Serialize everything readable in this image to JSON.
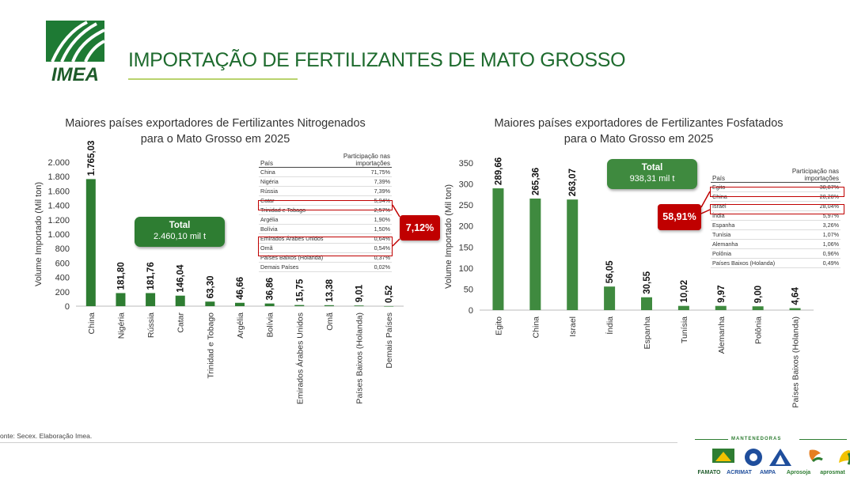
{
  "header": {
    "logo_text": "IMEA",
    "title": "IMPORTAÇÃO DE FERTILIZANTES DE MATO GROSSO"
  },
  "chart_data": [
    {
      "type": "bar",
      "title": "Maiores países exportadores de Fertilizantes Nitrogenados",
      "subtitle": "para o Mato Grosso em 2025",
      "ylabel": "Volume Importado (Mil ton)",
      "xlabel": "",
      "ylim": [
        0,
        2000
      ],
      "yticks": [
        0,
        200,
        400,
        600,
        800,
        1000,
        1200,
        1400,
        1600,
        1800,
        2000
      ],
      "ytick_labels": [
        "0",
        "200",
        "400",
        "600",
        "800",
        "1.000",
        "1.200",
        "1.400",
        "1.600",
        "1.800",
        "2.000"
      ],
      "categories": [
        "China",
        "Nigéria",
        "Rússia",
        "Catar",
        "Trinidad e Tobago",
        "Argélia",
        "Bolívia",
        "Emirados Árabes Unidos",
        "Omã",
        "Países Baixos (Holanda)",
        "Demais Países"
      ],
      "values": [
        1765.03,
        181.8,
        181.76,
        146.04,
        63.3,
        46.66,
        36.86,
        15.75,
        13.38,
        9.01,
        0.52
      ],
      "value_labels": [
        "1.765,03",
        "181,80",
        "181,76",
        "146,04",
        "63,30",
        "46,66",
        "36,86",
        "15,75",
        "13,38",
        "9,01",
        "0,52"
      ],
      "bar_color": "#2e7d32",
      "grid": false,
      "legend": "none"
    },
    {
      "type": "bar",
      "title": "Maiores países exportadores de Fertilizantes Fosfatados",
      "subtitle": "para o Mato Grosso em 2025",
      "ylabel": "Volume Importado (Mil ton)",
      "xlabel": "",
      "ylim": [
        0,
        350
      ],
      "yticks": [
        0,
        50,
        100,
        150,
        200,
        250,
        300,
        350
      ],
      "ytick_labels": [
        "0",
        "50",
        "100",
        "150",
        "200",
        "250",
        "300",
        "350"
      ],
      "categories": [
        "Egito",
        "China",
        "Israel",
        "Índia",
        "Espanha",
        "Tunísia",
        "Alemanha",
        "Polônia",
        "Países Baixos (Holanda)"
      ],
      "values": [
        289.66,
        265.36,
        263.07,
        56.05,
        30.55,
        10.02,
        9.97,
        9.0,
        4.64
      ],
      "value_labels": [
        "289,66",
        "265,36",
        "263,07",
        "56,05",
        "30,55",
        "10,02",
        "9,97",
        "9,00",
        "4,64"
      ],
      "bar_color": "#3f8a3f",
      "grid": false,
      "legend": "none"
    }
  ],
  "chart1": {
    "total": {
      "label": "Total",
      "value": "2.460,10 mil t"
    },
    "table": {
      "col_country": "País",
      "col_share": "Participação nas importações",
      "rows": [
        {
          "country": "China",
          "share": "71,75%"
        },
        {
          "country": "Nigéria",
          "share": "7,39%"
        },
        {
          "country": "Rússia",
          "share": "7,39%"
        },
        {
          "country": "Catar",
          "share": "5,94%"
        },
        {
          "country": "Trinidad e Tobago",
          "share": "2,57%"
        },
        {
          "country": "Argélia",
          "share": "1,90%"
        },
        {
          "country": "Bolívia",
          "share": "1,50%"
        },
        {
          "country": "Emirados Árabes Unidos",
          "share": "0,64%"
        },
        {
          "country": "Omã",
          "share": "0,54%"
        },
        {
          "country": "Países Baixos (Holanda)",
          "share": "0,37%"
        },
        {
          "country": "Demais Países",
          "share": "0,02%"
        }
      ]
    },
    "highlight_badge": "7,12%"
  },
  "chart2": {
    "total": {
      "label": "Total",
      "value": "938,31 mil t"
    },
    "table": {
      "col_country": "País",
      "col_share": "Participação nas importações",
      "rows": [
        {
          "country": "Egito",
          "share": "30,87%"
        },
        {
          "country": "China",
          "share": "28,28%"
        },
        {
          "country": "Israel",
          "share": "28,04%"
        },
        {
          "country": "Índia",
          "share": "5,97%"
        },
        {
          "country": "Espanha",
          "share": "3,26%"
        },
        {
          "country": "Tunísia",
          "share": "1,07%"
        },
        {
          "country": "Alemanha",
          "share": "1,06%"
        },
        {
          "country": "Polônia",
          "share": "0,96%"
        },
        {
          "country": "Países Baixos (Holanda)",
          "share": "0,49%"
        }
      ]
    },
    "highlight_badge": "58,91%"
  },
  "footer": {
    "source": "onte: Secex. Elaboração Imea.",
    "sponsors_label": "MANTENEDORAS",
    "sponsors": [
      "FAMATO",
      "ACRIMAT",
      "AMPA",
      "Aprosoja",
      "aprosmat"
    ]
  },
  "colors": {
    "title_green": "#1e6b2e",
    "accent_rule": "#b9d36e",
    "highlight_red": "#c00000"
  }
}
